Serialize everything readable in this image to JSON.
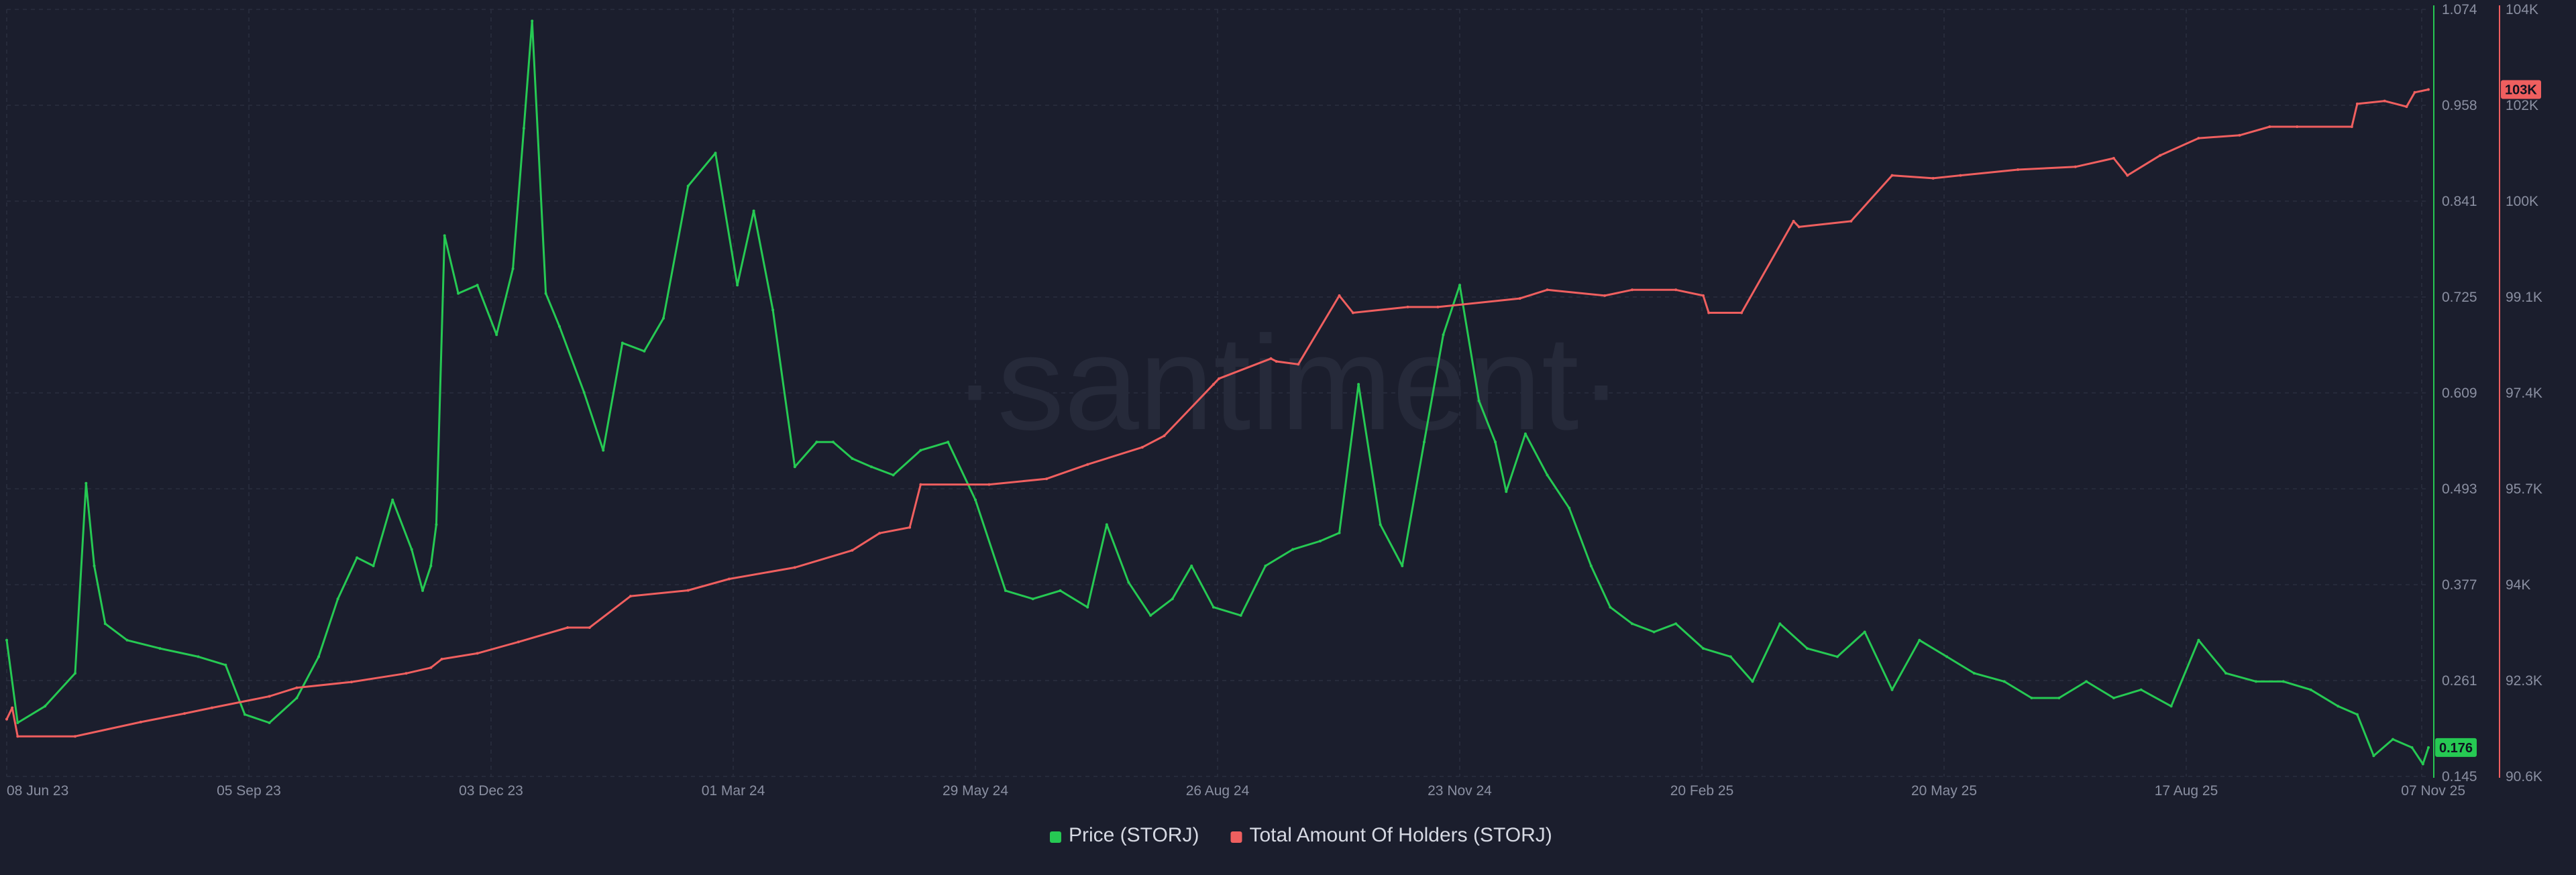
{
  "watermark": "·santiment·",
  "colors": {
    "background": "#1b1e2d",
    "grid": "#2a2e3f",
    "price": "#26c953",
    "holders": "#ef5f5f",
    "tick_text": "#8a8fa1",
    "legend_text": "#d6d9e3"
  },
  "chart_data": {
    "type": "line",
    "x_ticks": [
      "08 Jun 23",
      "05 Sep 23",
      "03 Dec 23",
      "01 Mar 24",
      "29 May 24",
      "26 Aug 24",
      "23 Nov 24",
      "20 Feb 25",
      "20 May 25",
      "17 Aug 25",
      "07 Nov 25"
    ],
    "x_range": [
      "2023-06-06",
      "2025-11-07"
    ],
    "grid": true,
    "legend_position": "bottom-center",
    "axes": {
      "price": {
        "side": "right-inner",
        "ylim": [
          0.145,
          1.074
        ],
        "ticks": [
          "1.074",
          "0.958",
          "0.841",
          "0.725",
          "0.609",
          "0.493",
          "0.377",
          "0.261",
          "0.145"
        ],
        "current_badge": "0.176"
      },
      "holders": {
        "side": "right-outer",
        "ylim": [
          90600,
          104000
        ],
        "ticks": [
          "104K",
          "102K",
          "100K",
          "99.1K",
          "97.4K",
          "95.7K",
          "94K",
          "92.3K",
          "90.6K"
        ],
        "current_badge": "103K"
      }
    },
    "series": [
      {
        "name": "Price (STORJ)",
        "axis": "price",
        "x": [
          "2023-06-06",
          "2023-06-10",
          "2023-06-20",
          "2023-07-01",
          "2023-07-05",
          "2023-07-08",
          "2023-07-12",
          "2023-07-20",
          "2023-08-01",
          "2023-08-15",
          "2023-08-25",
          "2023-09-01",
          "2023-09-10",
          "2023-09-20",
          "2023-09-28",
          "2023-10-05",
          "2023-10-12",
          "2023-10-18",
          "2023-10-25",
          "2023-11-01",
          "2023-11-05",
          "2023-11-08",
          "2023-11-10",
          "2023-11-13",
          "2023-11-18",
          "2023-11-25",
          "2023-12-02",
          "2023-12-08",
          "2023-12-12",
          "2023-12-15",
          "2023-12-20",
          "2023-12-25",
          "2024-01-03",
          "2024-01-10",
          "2024-01-17",
          "2024-01-25",
          "2024-02-01",
          "2024-02-10",
          "2024-02-20",
          "2024-02-28",
          "2024-03-05",
          "2024-03-12",
          "2024-03-20",
          "2024-03-28",
          "2024-04-03",
          "2024-04-10",
          "2024-04-17",
          "2024-04-25",
          "2024-05-05",
          "2024-05-15",
          "2024-05-25",
          "2024-06-05",
          "2024-06-15",
          "2024-06-25",
          "2024-07-05",
          "2024-07-12",
          "2024-07-20",
          "2024-07-28",
          "2024-08-05",
          "2024-08-12",
          "2024-08-20",
          "2024-08-30",
          "2024-09-08",
          "2024-09-18",
          "2024-09-28",
          "2024-10-05",
          "2024-10-12",
          "2024-10-20",
          "2024-10-28",
          "2024-11-05",
          "2024-11-12",
          "2024-11-18",
          "2024-11-25",
          "2024-12-01",
          "2024-12-05",
          "2024-12-12",
          "2024-12-20",
          "2024-12-28",
          "2025-01-05",
          "2025-01-12",
          "2025-01-20",
          "2025-01-28",
          "2025-02-05",
          "2025-02-15",
          "2025-02-25",
          "2025-03-05",
          "2025-03-15",
          "2025-03-25",
          "2025-04-05",
          "2025-04-15",
          "2025-04-25",
          "2025-05-05",
          "2025-05-15",
          "2025-05-25",
          "2025-06-05",
          "2025-06-15",
          "2025-06-25",
          "2025-07-05",
          "2025-07-15",
          "2025-07-25",
          "2025-08-05",
          "2025-08-15",
          "2025-08-25",
          "2025-09-05",
          "2025-09-15",
          "2025-09-25",
          "2025-10-05",
          "2025-10-12",
          "2025-10-18",
          "2025-10-25",
          "2025-11-01",
          "2025-11-05",
          "2025-11-07"
        ],
        "values": [
          0.31,
          0.21,
          0.23,
          0.27,
          0.5,
          0.4,
          0.33,
          0.31,
          0.3,
          0.29,
          0.28,
          0.22,
          0.21,
          0.24,
          0.29,
          0.36,
          0.41,
          0.4,
          0.48,
          0.42,
          0.37,
          0.4,
          0.45,
          0.8,
          0.73,
          0.74,
          0.68,
          0.76,
          0.93,
          1.06,
          0.73,
          0.69,
          0.61,
          0.54,
          0.67,
          0.66,
          0.7,
          0.86,
          0.9,
          0.74,
          0.83,
          0.71,
          0.52,
          0.55,
          0.55,
          0.53,
          0.52,
          0.51,
          0.54,
          0.55,
          0.48,
          0.37,
          0.36,
          0.37,
          0.35,
          0.45,
          0.38,
          0.34,
          0.36,
          0.4,
          0.35,
          0.34,
          0.4,
          0.42,
          0.43,
          0.44,
          0.62,
          0.45,
          0.4,
          0.55,
          0.68,
          0.74,
          0.6,
          0.55,
          0.49,
          0.56,
          0.51,
          0.47,
          0.4,
          0.35,
          0.33,
          0.32,
          0.33,
          0.3,
          0.29,
          0.26,
          0.33,
          0.3,
          0.29,
          0.32,
          0.25,
          0.31,
          0.29,
          0.27,
          0.26,
          0.24,
          0.24,
          0.26,
          0.24,
          0.25,
          0.23,
          0.31,
          0.27,
          0.26,
          0.26,
          0.25,
          0.23,
          0.22,
          0.17,
          0.19,
          0.18,
          0.16,
          0.18
        ]
      },
      {
        "name": "Total Amount Of Holders (STORJ)",
        "axis": "holders",
        "x": [
          "2023-06-06",
          "2023-06-08",
          "2023-06-10",
          "2023-07-01",
          "2023-07-25",
          "2023-08-10",
          "2023-08-20",
          "2023-09-10",
          "2023-09-20",
          "2023-10-10",
          "2023-10-30",
          "2023-11-08",
          "2023-11-12",
          "2023-11-25",
          "2023-12-10",
          "2023-12-28",
          "2024-01-05",
          "2024-01-20",
          "2024-02-10",
          "2024-02-25",
          "2024-03-20",
          "2024-04-10",
          "2024-04-20",
          "2024-05-01",
          "2024-05-05",
          "2024-05-30",
          "2024-06-20",
          "2024-07-05",
          "2024-07-25",
          "2024-08-02",
          "2024-08-20",
          "2024-08-22",
          "2024-09-10",
          "2024-09-12",
          "2024-09-20",
          "2024-10-05",
          "2024-10-10",
          "2024-10-30",
          "2024-11-10",
          "2024-12-10",
          "2024-12-20",
          "2025-01-10",
          "2025-01-20",
          "2025-02-05",
          "2025-02-15",
          "2025-02-17",
          "2025-03-01",
          "2025-03-20",
          "2025-03-22",
          "2025-04-10",
          "2025-04-25",
          "2025-05-10",
          "2025-05-20",
          "2025-06-10",
          "2025-07-01",
          "2025-07-15",
          "2025-07-20",
          "2025-08-01",
          "2025-08-15",
          "2025-08-30",
          "2025-09-10",
          "2025-09-20",
          "2025-10-10",
          "2025-10-12",
          "2025-10-22",
          "2025-10-30",
          "2025-11-02",
          "2025-11-07"
        ],
        "values": [
          91600,
          91800,
          91300,
          91300,
          91550,
          91700,
          91800,
          92000,
          92150,
          92250,
          92400,
          92500,
          92650,
          92750,
          92950,
          93200,
          93200,
          93750,
          93850,
          94050,
          94250,
          94550,
          94850,
          94950,
          95700,
          95700,
          95800,
          96050,
          96350,
          96550,
          97450,
          97550,
          97900,
          97850,
          97800,
          99000,
          98700,
          98800,
          98800,
          98950,
          99100,
          99000,
          99100,
          99100,
          99000,
          98700,
          98700,
          100300,
          100200,
          100300,
          101100,
          101050,
          101100,
          101200,
          101250,
          101400,
          101100,
          101450,
          101750,
          101800,
          101950,
          101950,
          101950,
          102350,
          102400,
          102300,
          102550,
          102600
        ]
      }
    ]
  },
  "legend": [
    {
      "label": "Price (STORJ)",
      "color": "#26c953"
    },
    {
      "label": "Total Amount Of Holders (STORJ)",
      "color": "#ef5f5f"
    }
  ]
}
